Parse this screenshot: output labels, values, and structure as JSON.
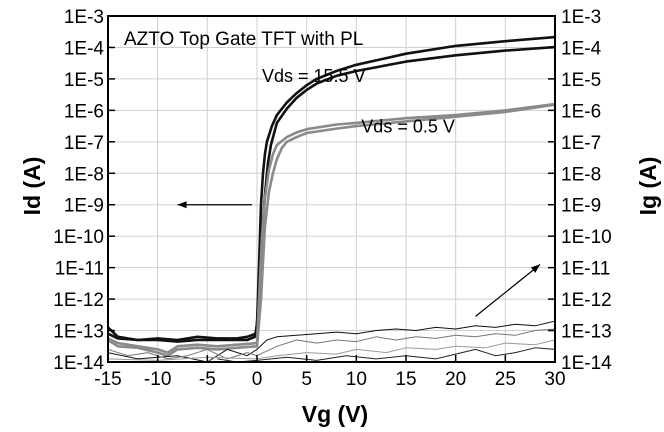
{
  "chart_data": {
    "type": "line",
    "title": "AZTO Top Gate TFT with PL",
    "xlabel": "Vg  (V)",
    "ylabel_left": "Id  (A)",
    "ylabel_right": "Ig  (A)",
    "xlim": [
      -15,
      30
    ],
    "ylim_log10": [
      -14,
      -3
    ],
    "y_scale": "log",
    "x_ticks": [
      {
        "value": -15,
        "label": "-15"
      },
      {
        "value": -10,
        "label": "-10"
      },
      {
        "value": -5,
        "label": "-5"
      },
      {
        "value": 0,
        "label": "0"
      },
      {
        "value": 5,
        "label": "5"
      },
      {
        "value": 10,
        "label": "10"
      },
      {
        "value": 15,
        "label": "15"
      },
      {
        "value": 20,
        "label": "20"
      },
      {
        "value": 25,
        "label": "25"
      },
      {
        "value": 30,
        "label": "30"
      }
    ],
    "y_ticks": [
      {
        "exp": -3,
        "label": "1E-3"
      },
      {
        "exp": -4,
        "label": "1E-4"
      },
      {
        "exp": -5,
        "label": "1E-5"
      },
      {
        "exp": -6,
        "label": "1E-6"
      },
      {
        "exp": -7,
        "label": "1E-7"
      },
      {
        "exp": -8,
        "label": "1E-8"
      },
      {
        "exp": -9,
        "label": "1E-9"
      },
      {
        "exp": -10,
        "label": "1E-10"
      },
      {
        "exp": -11,
        "label": "1E-11"
      },
      {
        "exp": -12,
        "label": "1E-12"
      },
      {
        "exp": -13,
        "label": "1E-13"
      },
      {
        "exp": -14,
        "label": "1E-14"
      }
    ],
    "grid": true,
    "annotations": [
      {
        "text": "Vds = 15.5 V",
        "x": 0.5,
        "y_exp": -5.1
      },
      {
        "text": "Vds = 0.5 V",
        "x": 10.5,
        "y_exp": -6.7
      }
    ],
    "arrows": [
      {
        "from": [
          -0.5,
          -9.0
        ],
        "to": [
          -8.0,
          -9.0
        ]
      },
      {
        "from": [
          22.0,
          -12.55
        ],
        "to": [
          28.5,
          -10.9
        ]
      }
    ],
    "series": [
      {
        "axis": "left",
        "color": "#111111",
        "width": 2.6,
        "points": [
          [
            -15,
            -12.9
          ],
          [
            -14,
            -13.2
          ],
          [
            -12,
            -13.3
          ],
          [
            -10,
            -13.3
          ],
          [
            -8,
            -13.35
          ],
          [
            -6,
            -13.3
          ],
          [
            -4,
            -13.3
          ],
          [
            -2,
            -13.3
          ],
          [
            -1,
            -13.3
          ],
          [
            -0.2,
            -13.2
          ],
          [
            0,
            -12.8
          ],
          [
            0.2,
            -11
          ],
          [
            0.4,
            -9
          ],
          [
            0.6,
            -8
          ],
          [
            0.8,
            -7.4
          ],
          [
            1,
            -7
          ],
          [
            1.5,
            -6.5
          ],
          [
            2,
            -6.15
          ],
          [
            3,
            -5.75
          ],
          [
            4,
            -5.45
          ],
          [
            5,
            -5.2
          ],
          [
            6,
            -5.0
          ],
          [
            8,
            -4.75
          ],
          [
            10,
            -4.55
          ],
          [
            15,
            -4.2
          ],
          [
            20,
            -3.95
          ],
          [
            25,
            -3.8
          ],
          [
            30,
            -3.67
          ]
        ]
      },
      {
        "axis": "left",
        "color": "#111111",
        "width": 2.6,
        "points": [
          [
            -15,
            -13.1
          ],
          [
            -14,
            -13.25
          ],
          [
            -12,
            -13.3
          ],
          [
            -10,
            -13.25
          ],
          [
            -8,
            -13.3
          ],
          [
            -6,
            -13.2
          ],
          [
            -4,
            -13.25
          ],
          [
            -2,
            -13.25
          ],
          [
            -1,
            -13.2
          ],
          [
            -0.1,
            -13.1
          ],
          [
            0.2,
            -12
          ],
          [
            0.5,
            -10
          ],
          [
            0.8,
            -8.7
          ],
          [
            1.1,
            -7.7
          ],
          [
            1.4,
            -7.1
          ],
          [
            2,
            -6.4
          ],
          [
            3,
            -5.95
          ],
          [
            4,
            -5.6
          ],
          [
            5,
            -5.35
          ],
          [
            6,
            -5.15
          ],
          [
            8,
            -4.9
          ],
          [
            10,
            -4.75
          ],
          [
            15,
            -4.45
          ],
          [
            20,
            -4.25
          ],
          [
            25,
            -4.1
          ],
          [
            30,
            -3.99
          ]
        ]
      },
      {
        "axis": "left",
        "color": "#8a8a8a",
        "width": 2.6,
        "points": [
          [
            -15,
            -13.25
          ],
          [
            -14,
            -13.4
          ],
          [
            -12,
            -13.5
          ],
          [
            -10,
            -13.6
          ],
          [
            -9,
            -13.7
          ],
          [
            -8,
            -13.5
          ],
          [
            -6,
            -13.45
          ],
          [
            -4,
            -13.5
          ],
          [
            -2,
            -13.45
          ],
          [
            0,
            -13.4
          ],
          [
            0.2,
            -12
          ],
          [
            0.5,
            -10
          ],
          [
            0.8,
            -8.8
          ],
          [
            1.2,
            -7.9
          ],
          [
            1.6,
            -7.4
          ],
          [
            2,
            -7.1
          ],
          [
            3,
            -6.85
          ],
          [
            4,
            -6.7
          ],
          [
            5,
            -6.6
          ],
          [
            8,
            -6.45
          ],
          [
            10,
            -6.4
          ],
          [
            15,
            -6.25
          ],
          [
            20,
            -6.15
          ],
          [
            25,
            -6.0
          ],
          [
            30,
            -5.8
          ]
        ]
      },
      {
        "axis": "left",
        "color": "#8a8a8a",
        "width": 2.6,
        "points": [
          [
            -15,
            -13.3
          ],
          [
            -14,
            -13.5
          ],
          [
            -12,
            -13.55
          ],
          [
            -10,
            -13.7
          ],
          [
            -9,
            -13.8
          ],
          [
            -8,
            -13.6
          ],
          [
            -6,
            -13.55
          ],
          [
            -4,
            -13.6
          ],
          [
            -2,
            -13.55
          ],
          [
            0,
            -13.5
          ],
          [
            0.4,
            -12
          ],
          [
            0.8,
            -9.7
          ],
          [
            1.2,
            -8.6
          ],
          [
            1.6,
            -8
          ],
          [
            2,
            -7.55
          ],
          [
            2.5,
            -7.2
          ],
          [
            3,
            -7.0
          ],
          [
            4,
            -6.85
          ],
          [
            5,
            -6.72
          ],
          [
            8,
            -6.58
          ],
          [
            10,
            -6.5
          ],
          [
            15,
            -6.35
          ],
          [
            20,
            -6.2
          ],
          [
            25,
            -6.05
          ],
          [
            30,
            -5.82
          ]
        ]
      },
      {
        "axis": "right",
        "color": "#111111",
        "width": 1,
        "points": [
          [
            -15,
            -13.7
          ],
          [
            -12,
            -13.9
          ],
          [
            -8,
            -13.8
          ],
          [
            -5,
            -14
          ],
          [
            -3,
            -13.6
          ],
          [
            -1,
            -13.8
          ],
          [
            0,
            -13.6
          ],
          [
            1,
            -13.3
          ],
          [
            2,
            -13.2
          ],
          [
            4,
            -13.15
          ],
          [
            6,
            -13.1
          ],
          [
            8,
            -13.05
          ],
          [
            10,
            -13.1
          ],
          [
            12,
            -13.0
          ],
          [
            14,
            -12.95
          ],
          [
            16,
            -13.0
          ],
          [
            18,
            -12.9
          ],
          [
            20,
            -12.95
          ],
          [
            22,
            -12.85
          ],
          [
            24,
            -12.9
          ],
          [
            26,
            -12.8
          ],
          [
            28,
            -12.85
          ],
          [
            30,
            -12.7
          ]
        ]
      },
      {
        "axis": "right",
        "color": "#777777",
        "width": 1,
        "points": [
          [
            -15,
            -13.6
          ],
          [
            -13,
            -13.8
          ],
          [
            -11,
            -13.7
          ],
          [
            -9,
            -13.9
          ],
          [
            -7,
            -13.8
          ],
          [
            -5,
            -13.6
          ],
          [
            -3,
            -13.9
          ],
          [
            -1,
            -13.7
          ],
          [
            0,
            -13.8
          ],
          [
            2,
            -13.5
          ],
          [
            4,
            -13.3
          ],
          [
            6,
            -13.4
          ],
          [
            8,
            -13.3
          ],
          [
            10,
            -13.35
          ],
          [
            12,
            -13.2
          ],
          [
            14,
            -13.3
          ],
          [
            16,
            -13.2
          ],
          [
            18,
            -13.25
          ],
          [
            20,
            -13.15
          ],
          [
            22,
            -13.2
          ],
          [
            24,
            -13.1
          ],
          [
            26,
            -13.15
          ],
          [
            28,
            -13.0
          ],
          [
            30,
            -12.95
          ]
        ]
      },
      {
        "axis": "right",
        "color": "#999999",
        "width": 1,
        "points": [
          [
            -15,
            -13.9
          ],
          [
            -10,
            -13.95
          ],
          [
            -5,
            -13.85
          ],
          [
            0,
            -13.9
          ],
          [
            2,
            -13.8
          ],
          [
            5,
            -13.7
          ],
          [
            8,
            -13.75
          ],
          [
            10,
            -13.6
          ],
          [
            13,
            -13.7
          ],
          [
            15,
            -13.55
          ],
          [
            18,
            -13.6
          ],
          [
            20,
            -13.5
          ],
          [
            23,
            -13.55
          ],
          [
            25,
            -13.4
          ],
          [
            28,
            -13.45
          ],
          [
            30,
            -13.3
          ]
        ]
      },
      {
        "axis": "right",
        "color": "#222222",
        "width": 1,
        "points": [
          [
            -4,
            -13.9
          ],
          [
            -2,
            -14
          ],
          [
            0,
            -13.95
          ],
          [
            3,
            -13.85
          ],
          [
            6,
            -13.95
          ],
          [
            9,
            -13.8
          ],
          [
            12,
            -13.9
          ],
          [
            15,
            -13.8
          ],
          [
            18,
            -13.9
          ],
          [
            20,
            -13.75
          ],
          [
            22,
            -13.6
          ],
          [
            24,
            -13.8
          ],
          [
            26,
            -13.7
          ],
          [
            28,
            -13.55
          ],
          [
            30,
            -13.6
          ]
        ]
      }
    ]
  }
}
